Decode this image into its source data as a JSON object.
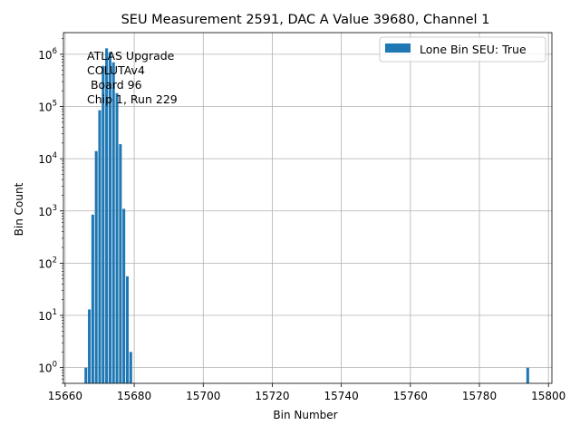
{
  "chart_data": {
    "type": "bar",
    "title": "SEU Measurement 2591, DAC A Value 39680, Channel 1",
    "xlabel": "Bin Number",
    "ylabel": "Bin Count",
    "yscale": "log",
    "xlim": [
      15659.5,
      15801
    ],
    "ylim": [
      0.5,
      2600000
    ],
    "xticks": [
      15660,
      15680,
      15700,
      15720,
      15740,
      15760,
      15780,
      15800
    ],
    "yticks": [
      {
        "value": 1,
        "base": "10",
        "exp": "0"
      },
      {
        "value": 10,
        "base": "10",
        "exp": "1"
      },
      {
        "value": 100,
        "base": "10",
        "exp": "2"
      },
      {
        "value": 1000,
        "base": "10",
        "exp": "3"
      },
      {
        "value": 10000,
        "base": "10",
        "exp": "4"
      },
      {
        "value": 100000,
        "base": "10",
        "exp": "5"
      },
      {
        "value": 1000000,
        "base": "10",
        "exp": "6"
      }
    ],
    "grid": true,
    "bar_color": "#1f77b4",
    "legend": {
      "label": "Lone Bin SEU: True",
      "location": "upper right"
    },
    "annotation": [
      "ATLAS Upgrade",
      "COLUTAv4",
      " Board 96",
      "Chip 1, Run 229"
    ],
    "series": [
      {
        "name": "Lone Bin SEU: True",
        "x": [
          15666,
          15667,
          15668,
          15669,
          15670,
          15671,
          15672,
          15673,
          15674,
          15675,
          15676,
          15677,
          15678,
          15679,
          15794
        ],
        "values": [
          1,
          13,
          850,
          14000,
          85000,
          600000,
          1300000,
          1100000,
          700000,
          180000,
          19000,
          1100,
          56,
          2,
          1
        ]
      }
    ]
  }
}
